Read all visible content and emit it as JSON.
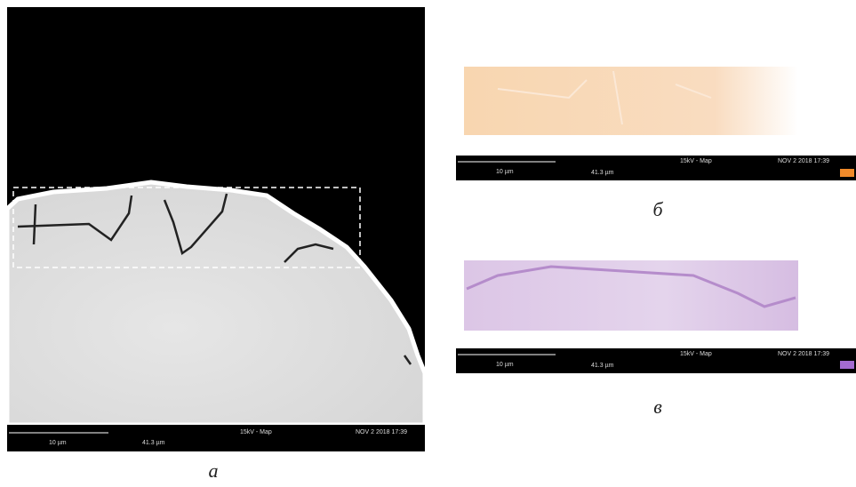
{
  "panels": [
    {
      "caption": "а",
      "scale_label": "10 µm",
      "field_width": "41.3 µm",
      "mode": "15kV - Map",
      "date": "NOV 2 2018 17:39"
    },
    {
      "caption": "б",
      "scale_label": "10 µm",
      "field_width": "41.3 µm",
      "mode": "15kV - Map",
      "date": "NOV 2 2018 17:39"
    },
    {
      "caption": "в",
      "scale_label": "10 µm",
      "field_width": "41.3 µm",
      "mode": "15kV - Map",
      "date": "NOV 2 2018 17:39"
    }
  ]
}
